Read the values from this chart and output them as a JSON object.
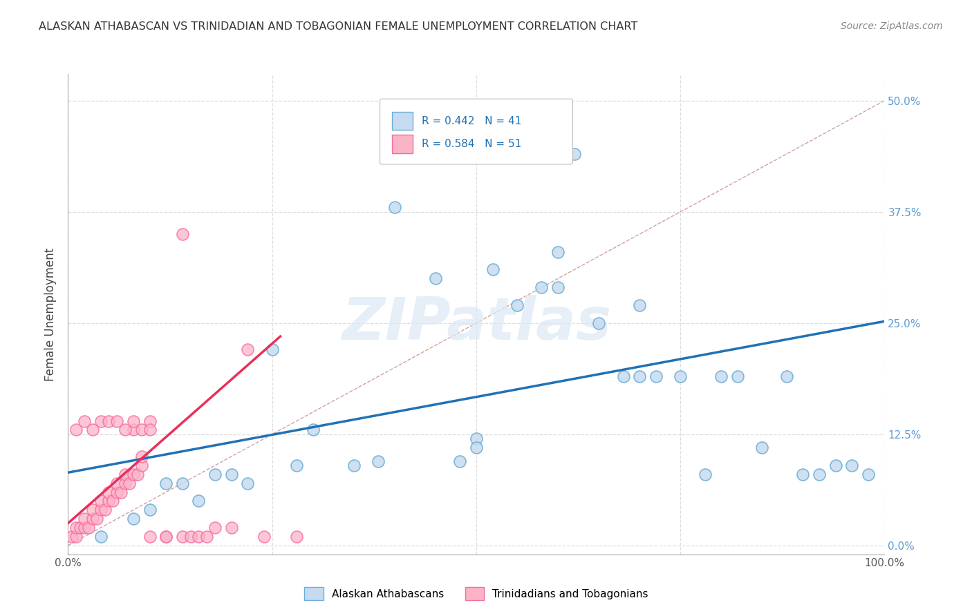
{
  "title": "ALASKAN ATHABASCAN VS TRINIDADIAN AND TOBAGONIAN FEMALE UNEMPLOYMENT CORRELATION CHART",
  "source": "Source: ZipAtlas.com",
  "ylabel": "Female Unemployment",
  "watermark": "ZIPatlas",
  "legend_r1": "R = 0.442",
  "legend_n1": "N = 41",
  "legend_r2": "R = 0.584",
  "legend_n2": "N = 51",
  "color_blue_fill": "#c6dbef",
  "color_blue_edge": "#6baed6",
  "color_pink_fill": "#fbb4c6",
  "color_pink_edge": "#f768a1",
  "color_trendline_blue": "#2171b5",
  "color_trendline_pink": "#e8305a",
  "color_diagonal": "#d0a0a0",
  "xlim": [
    0.0,
    1.0
  ],
  "ylim": [
    -0.01,
    0.53
  ],
  "ytick_vals": [
    0.0,
    0.125,
    0.25,
    0.375,
    0.5
  ],
  "ytick_labels_right": [
    "0.0%",
    "12.5%",
    "25.0%",
    "37.5%",
    "50.0%"
  ],
  "xtick_vals": [
    0.0,
    0.25,
    0.5,
    0.75,
    1.0
  ],
  "xtick_labels": [
    "0.0%",
    "",
    "",
    "",
    "100.0%"
  ],
  "blue_x": [
    0.04,
    0.08,
    0.1,
    0.12,
    0.14,
    0.16,
    0.18,
    0.2,
    0.22,
    0.25,
    0.28,
    0.3,
    0.35,
    0.38,
    0.4,
    0.45,
    0.48,
    0.5,
    0.52,
    0.55,
    0.58,
    0.6,
    0.62,
    0.65,
    0.68,
    0.7,
    0.72,
    0.75,
    0.78,
    0.8,
    0.82,
    0.85,
    0.88,
    0.9,
    0.92,
    0.94,
    0.96,
    0.98,
    0.5,
    0.6,
    0.7
  ],
  "blue_y": [
    0.01,
    0.03,
    0.04,
    0.07,
    0.07,
    0.05,
    0.08,
    0.08,
    0.07,
    0.22,
    0.09,
    0.13,
    0.09,
    0.095,
    0.38,
    0.3,
    0.095,
    0.12,
    0.31,
    0.27,
    0.29,
    0.29,
    0.44,
    0.25,
    0.19,
    0.19,
    0.19,
    0.19,
    0.08,
    0.19,
    0.19,
    0.11,
    0.19,
    0.08,
    0.08,
    0.09,
    0.09,
    0.08,
    0.11,
    0.33,
    0.27
  ],
  "pink_x": [
    0.005,
    0.01,
    0.01,
    0.015,
    0.02,
    0.02,
    0.025,
    0.03,
    0.03,
    0.035,
    0.04,
    0.04,
    0.045,
    0.05,
    0.05,
    0.055,
    0.06,
    0.06,
    0.065,
    0.07,
    0.07,
    0.075,
    0.08,
    0.08,
    0.085,
    0.09,
    0.09,
    0.01,
    0.02,
    0.03,
    0.04,
    0.05,
    0.06,
    0.07,
    0.08,
    0.09,
    0.1,
    0.1,
    0.1,
    0.12,
    0.12,
    0.14,
    0.14,
    0.15,
    0.16,
    0.17,
    0.18,
    0.2,
    0.22,
    0.24,
    0.28
  ],
  "pink_y": [
    0.01,
    0.01,
    0.02,
    0.02,
    0.02,
    0.03,
    0.02,
    0.03,
    0.04,
    0.03,
    0.04,
    0.05,
    0.04,
    0.05,
    0.06,
    0.05,
    0.06,
    0.07,
    0.06,
    0.07,
    0.08,
    0.07,
    0.08,
    0.13,
    0.08,
    0.09,
    0.1,
    0.13,
    0.14,
    0.13,
    0.14,
    0.14,
    0.14,
    0.13,
    0.14,
    0.13,
    0.14,
    0.13,
    0.01,
    0.01,
    0.01,
    0.01,
    0.35,
    0.01,
    0.01,
    0.01,
    0.02,
    0.02,
    0.22,
    0.01,
    0.01
  ],
  "blue_trend_x": [
    0.0,
    1.0
  ],
  "blue_trend_y": [
    0.082,
    0.252
  ],
  "pink_trend_x": [
    0.0,
    0.26
  ],
  "pink_trend_y": [
    0.025,
    0.235
  ]
}
